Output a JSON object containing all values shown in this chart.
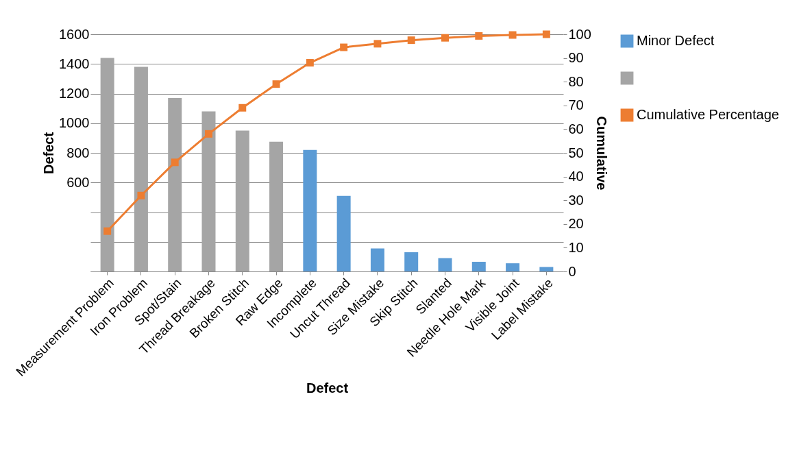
{
  "chart_data": {
    "type": "bar",
    "xlabel": "Defect",
    "ylabel": "Defect",
    "y2label": "Cumulative",
    "categories": [
      "Measurement Problem",
      "Iron Problem",
      "Spot/Stain",
      "Thread Breakage",
      "Broken Stitch",
      "Raw Edge",
      "Incomplete",
      "Uncut Thread",
      "Size Mistake",
      "Skip Stitch",
      "Slanted",
      "Needle Hole Mark",
      "Visible Joint",
      "Label Mistake"
    ],
    "series": [
      {
        "name": "Minor Defect",
        "color": "#5b9bd5",
        "values": [
          null,
          null,
          null,
          null,
          null,
          null,
          820,
          510,
          155,
          130,
          90,
          65,
          55,
          30
        ]
      },
      {
        "color": "#a5a5a5",
        "values": [
          1440,
          1380,
          1170,
          1080,
          950,
          875,
          null,
          null,
          null,
          null,
          null,
          null,
          null,
          null
        ]
      },
      {
        "name": "Cumulative Percentage",
        "type": "line",
        "axis": "y2",
        "color": "#ed7d31",
        "marker": "square",
        "line_style": "solid",
        "values": [
          17,
          32,
          46,
          58,
          69,
          79,
          88,
          94.5,
          96,
          97.5,
          98.5,
          99.3,
          99.7,
          100
        ]
      }
    ],
    "ylim": [
      0,
      1600
    ],
    "yticks": [
      {
        "value": 0,
        "label": null
      },
      {
        "value": 200,
        "label": null
      },
      {
        "value": 400,
        "label": null
      },
      600,
      800,
      1000,
      1200,
      1400,
      1600
    ],
    "y2lim": [
      0,
      100
    ],
    "y2ticks": [
      0,
      10,
      20,
      30,
      40,
      50,
      60,
      70,
      80,
      90,
      100
    ],
    "grid": "y",
    "legend": "right"
  }
}
